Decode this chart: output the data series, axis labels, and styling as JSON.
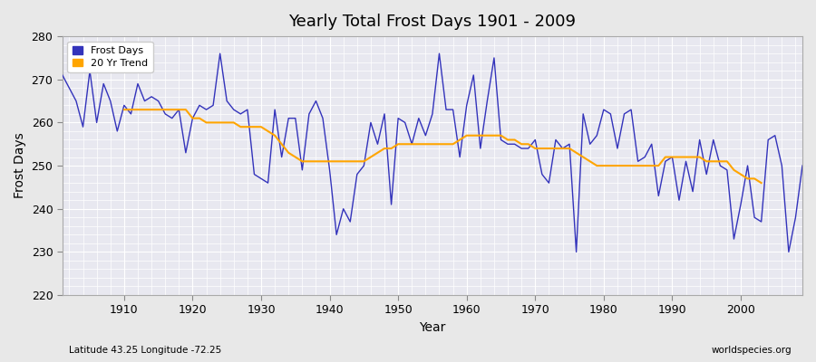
{
  "title": "Yearly Total Frost Days 1901 - 2009",
  "xlabel": "Year",
  "ylabel": "Frost Days",
  "bottom_left_label": "Latitude 43.25 Longitude -72.25",
  "bottom_right_label": "worldspecies.org",
  "xlim": [
    1901,
    2009
  ],
  "ylim": [
    220,
    280
  ],
  "yticks": [
    220,
    230,
    240,
    250,
    260,
    270,
    280
  ],
  "xticks": [
    1910,
    1920,
    1930,
    1940,
    1950,
    1960,
    1970,
    1980,
    1990,
    2000
  ],
  "fig_bg_color": "#e8e8e8",
  "plot_bg_color": "#e8e8f0",
  "line_color": "#3333bb",
  "trend_color": "#ffa500",
  "years": [
    1901,
    1902,
    1903,
    1904,
    1905,
    1906,
    1907,
    1908,
    1909,
    1910,
    1911,
    1912,
    1913,
    1914,
    1915,
    1916,
    1917,
    1918,
    1919,
    1920,
    1921,
    1922,
    1923,
    1924,
    1925,
    1926,
    1927,
    1928,
    1929,
    1930,
    1931,
    1932,
    1933,
    1934,
    1935,
    1936,
    1937,
    1938,
    1939,
    1940,
    1941,
    1942,
    1943,
    1944,
    1945,
    1946,
    1947,
    1948,
    1949,
    1950,
    1951,
    1952,
    1953,
    1954,
    1955,
    1956,
    1957,
    1958,
    1959,
    1960,
    1961,
    1962,
    1963,
    1964,
    1965,
    1966,
    1967,
    1968,
    1969,
    1970,
    1971,
    1972,
    1973,
    1974,
    1975,
    1976,
    1977,
    1978,
    1979,
    1980,
    1981,
    1982,
    1983,
    1984,
    1985,
    1986,
    1987,
    1988,
    1989,
    1990,
    1991,
    1992,
    1993,
    1994,
    1995,
    1996,
    1997,
    1998,
    1999,
    2000,
    2001,
    2002,
    2003,
    2004,
    2005,
    2006,
    2007,
    2008,
    2009
  ],
  "frost_days": [
    271,
    268,
    265,
    259,
    272,
    260,
    269,
    265,
    258,
    264,
    262,
    269,
    265,
    266,
    265,
    262,
    261,
    263,
    253,
    261,
    264,
    263,
    264,
    276,
    265,
    263,
    262,
    263,
    248,
    247,
    246,
    263,
    252,
    261,
    261,
    249,
    262,
    265,
    261,
    249,
    234,
    240,
    237,
    248,
    250,
    260,
    255,
    262,
    241,
    261,
    260,
    255,
    261,
    257,
    262,
    276,
    263,
    263,
    252,
    264,
    271,
    254,
    265,
    275,
    256,
    255,
    255,
    254,
    254,
    256,
    248,
    246,
    256,
    254,
    255,
    230,
    262,
    255,
    257,
    263,
    262,
    254,
    262,
    263,
    251,
    252,
    255,
    243,
    251,
    252,
    242,
    251,
    244,
    256,
    248,
    256,
    250,
    249,
    233,
    241,
    250,
    238,
    237,
    256,
    257,
    250,
    230,
    238,
    250
  ],
  "trend": [
    null,
    null,
    null,
    null,
    null,
    null,
    null,
    null,
    null,
    263,
    263,
    263,
    263,
    263,
    263,
    263,
    263,
    263,
    263,
    261,
    261,
    260,
    260,
    260,
    260,
    260,
    259,
    259,
    259,
    259,
    258,
    257,
    255,
    253,
    252,
    251,
    251,
    251,
    251,
    251,
    251,
    251,
    251,
    251,
    251,
    252,
    253,
    254,
    254,
    255,
    255,
    255,
    255,
    255,
    255,
    255,
    255,
    255,
    256,
    257,
    257,
    257,
    257,
    257,
    257,
    256,
    256,
    255,
    255,
    254,
    254,
    254,
    254,
    254,
    254,
    253,
    252,
    251,
    250,
    250,
    250,
    250,
    250,
    250,
    250,
    250,
    250,
    250,
    252,
    252,
    252,
    252,
    252,
    252,
    251,
    251,
    251,
    251,
    249,
    248,
    247,
    247,
    246,
    null,
    null,
    null,
    null,
    null,
    null
  ]
}
